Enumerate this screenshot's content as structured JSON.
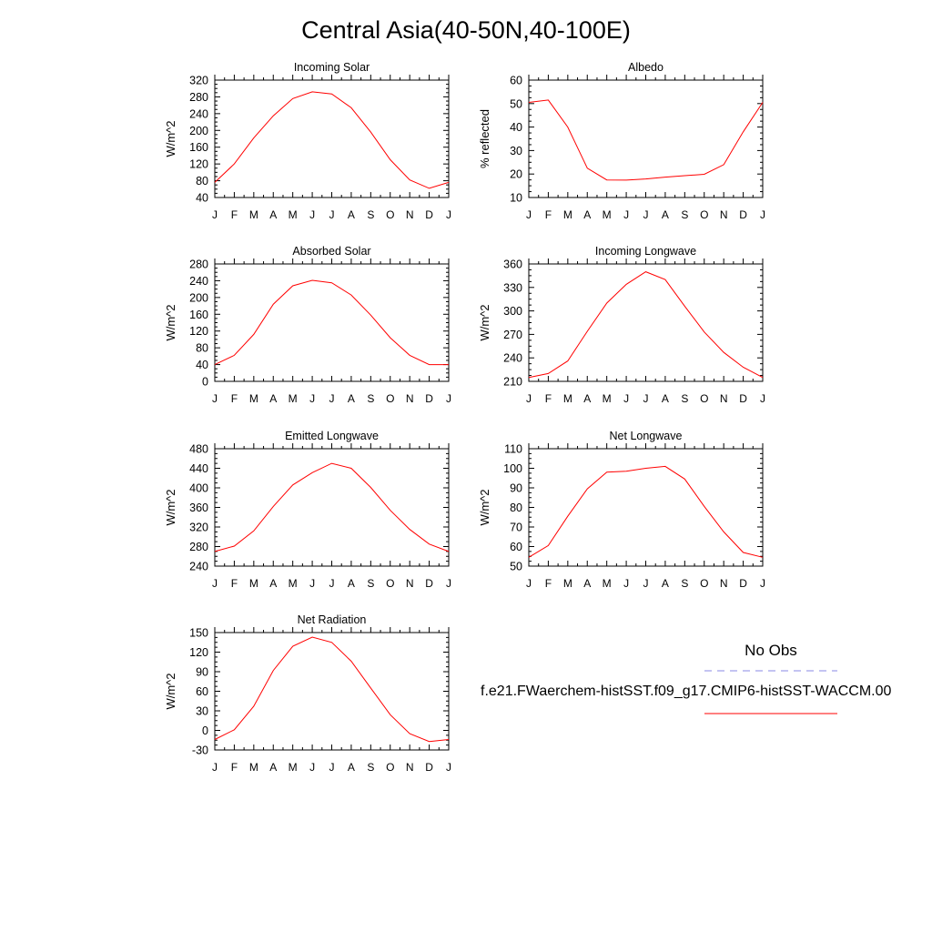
{
  "title": "Central Asia(40-50N,40-100E)",
  "months": [
    "J",
    "F",
    "M",
    "A",
    "M",
    "J",
    "J",
    "A",
    "S",
    "O",
    "N",
    "D",
    "J"
  ],
  "legend": {
    "obs_label": "No Obs",
    "obs_color": "#8a8ae6",
    "model_label": "f.e21.FWaerchem-histSST.f09_g17.CMIP6-histSST-WACCM.00",
    "model_color": "#ff0000"
  },
  "chart_data": [
    {
      "type": "line",
      "title": "Incoming Solar",
      "ylabel": "W/m^2",
      "ylim": [
        40,
        320
      ],
      "yticks": [
        40,
        80,
        120,
        160,
        200,
        240,
        280,
        320
      ],
      "series": [
        {
          "name": "f.e21.FWaerchem-histSST.f09_g17.CMIP6-histSST-WACCM.00",
          "color": "#ff0000",
          "values": [
            76,
            120,
            182,
            235,
            276,
            292,
            287,
            254,
            196,
            130,
            82,
            62,
            76
          ]
        }
      ]
    },
    {
      "type": "line",
      "title": "Albedo",
      "ylabel": "% reflected",
      "ylim": [
        10,
        60
      ],
      "yticks": [
        10,
        20,
        30,
        40,
        50,
        60
      ],
      "series": [
        {
          "name": "f.e21.FWaerchem-histSST.f09_g17.CMIP6-histSST-WACCM.00",
          "color": "#ff0000",
          "values": [
            50.5,
            51.5,
            40,
            22.5,
            17.5,
            17.4,
            17.9,
            18.7,
            19.3,
            19.9,
            24,
            38,
            50.5
          ]
        }
      ]
    },
    {
      "type": "line",
      "title": "Absorbed Solar",
      "ylabel": "W/m^2",
      "ylim": [
        0,
        280
      ],
      "yticks": [
        0,
        40,
        80,
        120,
        160,
        200,
        240,
        280
      ],
      "series": [
        {
          "name": "f.e21.FWaerchem-histSST.f09_g17.CMIP6-histSST-WACCM.00",
          "color": "#ff0000",
          "values": [
            40,
            62,
            112,
            184,
            228,
            241,
            235,
            206,
            158,
            104,
            62,
            40,
            40
          ]
        }
      ]
    },
    {
      "type": "line",
      "title": "Incoming Longwave",
      "ylabel": "W/m^2",
      "ylim": [
        210,
        360
      ],
      "yticks": [
        210,
        240,
        270,
        300,
        330,
        360
      ],
      "series": [
        {
          "name": "f.e21.FWaerchem-histSST.f09_g17.CMIP6-histSST-WACCM.00",
          "color": "#ff0000",
          "values": [
            215,
            220,
            236,
            274,
            310,
            334,
            350,
            340,
            306,
            273,
            247,
            228,
            215
          ]
        }
      ]
    },
    {
      "type": "line",
      "title": "Emitted Longwave",
      "ylabel": "W/m^2",
      "ylim": [
        240,
        480
      ],
      "yticks": [
        240,
        280,
        320,
        360,
        400,
        440,
        480
      ],
      "series": [
        {
          "name": "f.e21.FWaerchem-histSST.f09_g17.CMIP6-histSST-WACCM.00",
          "color": "#ff0000",
          "values": [
            270,
            281,
            312,
            362,
            406,
            431,
            450,
            440,
            401,
            354,
            315,
            285,
            270
          ]
        }
      ]
    },
    {
      "type": "line",
      "title": "Net Longwave",
      "ylabel": "W/m^2",
      "ylim": [
        50,
        110
      ],
      "yticks": [
        50,
        60,
        70,
        80,
        90,
        100,
        110
      ],
      "series": [
        {
          "name": "f.e21.FWaerchem-histSST.f09_g17.CMIP6-histSST-WACCM.00",
          "color": "#ff0000",
          "values": [
            54.5,
            60.5,
            75.5,
            89.5,
            98,
            98.5,
            100,
            101,
            94.5,
            80.5,
            67.5,
            57,
            54.5
          ]
        }
      ]
    },
    {
      "type": "line",
      "title": "Net Radiation",
      "ylabel": "W/m^2",
      "ylim": [
        -30,
        150
      ],
      "yticks": [
        -30,
        0,
        30,
        60,
        90,
        120,
        150
      ],
      "series": [
        {
          "name": "f.e21.FWaerchem-histSST.f09_g17.CMIP6-histSST-WACCM.00",
          "color": "#ff0000",
          "values": [
            -14,
            1,
            37,
            92,
            129,
            143,
            135,
            106,
            65,
            24,
            -5,
            -17,
            -14
          ]
        }
      ]
    }
  ]
}
